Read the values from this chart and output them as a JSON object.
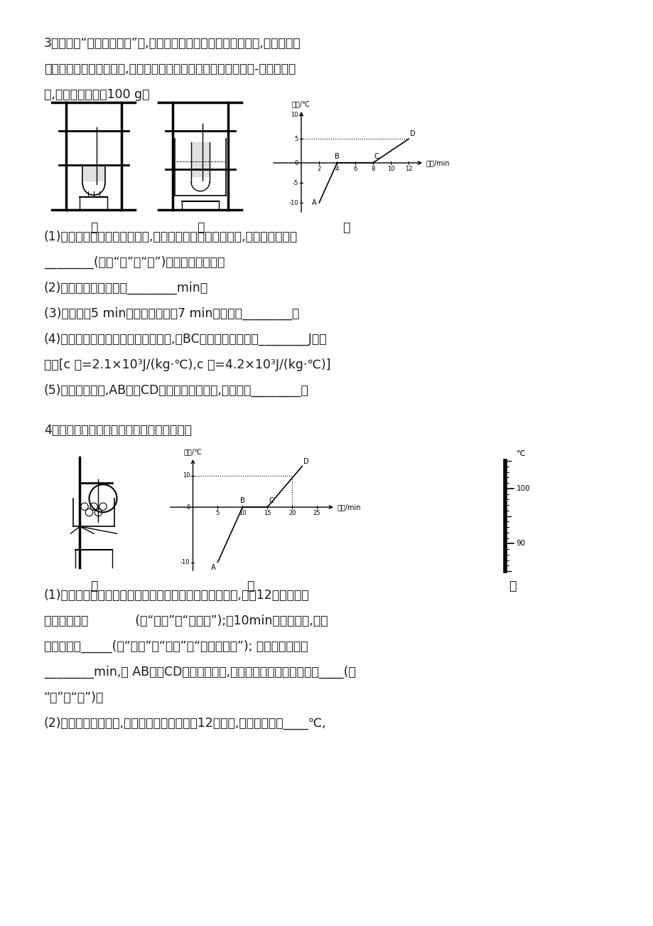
{
  "bg_color": "#ffffff",
  "text_color": "#1a1a1a",
  "page_width": 9.2,
  "page_height": 13.02,
  "question3": {
    "intro": "3、在探究“冰的融化特点”时,有如图甲、乙所示的两套实验装置,小明选择了",
    "intro2": "合适的实验装置进行实验,根据实验数据绘制了如图丙所示的温度-时间关系图",
    "intro3": "象,已知冰的质量为100 g。",
    "label_jia": "甲",
    "label_yi": "乙",
    "label_bing": "丙",
    "q1": "(1)为了使试管中的冰受热均匀,且便于记录各时刻的温度値,小明同学应选用",
    "q1b": "________(选填“甲”或“乙”)装置来进行实验。",
    "q2": "(2)冰的融化过程持续了________min。",
    "q3": "(3)物质在第5 min具有的内能比第7 min时的内能________。",
    "q4": "(4)设相同时间内物质吸收的热量相同,则BC阶段物质共吸收了________J的热",
    "q4b": "量。[c 冰=2.1×10³J/(kg·℃),c 水=4.2×10³J/(kg·℃)]",
    "q5": "(5)在图丙所示中,AB段与CD段的倾斜程度不同,这是因为________。"
  },
  "question4": {
    "intro": "4、小明同学用如图甲所示的装置对冰加热。",
    "label_jia": "甲",
    "label_yi": "乙",
    "label_bing": "丙",
    "q1": "(1)根据实验记录他绘制了冰融化时温度随时间变化的图像,如图12乙所示。由",
    "q1b": "图像可知冰是            (填“晶体”或“非晶体”);在10min末这一时刻,杯里",
    "q1c": "的物质处于_____(填“固态”、“液态”或“固液混合态”); 冰融化过程需要",
    "q1d": "________min,从 AB段和CD段的比较可知,冰的比热容比水的比热容要____(填",
    "q1e": "“大”或“小”)。",
    "q2": "(2)继续加热到水沸腾,此时温度计的示数如图12丙所示,则水的沸点是____℃,"
  }
}
